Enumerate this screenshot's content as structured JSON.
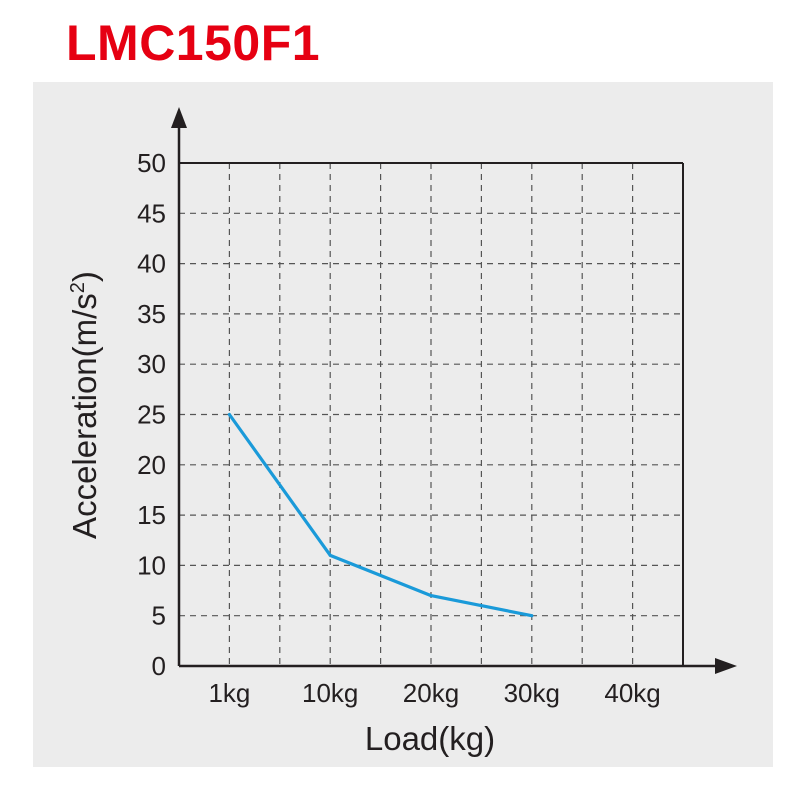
{
  "title": "LMC150F1",
  "chart_data": {
    "type": "line",
    "title": "LMC150F1",
    "xlabel": "Load(kg)",
    "ylabel_main": "Acceleration(m/s",
    "ylabel_sup": "2",
    "ylabel_close": ")",
    "categories": [
      "1kg",
      "10kg",
      "20kg",
      "30kg",
      "40kg"
    ],
    "ylim": [
      0,
      50
    ],
    "yticks": [
      0,
      5,
      10,
      15,
      20,
      25,
      30,
      35,
      40,
      45,
      50
    ],
    "grid": true,
    "series": [
      {
        "name": "LMC150F1",
        "color": "#1a9ad9",
        "points": [
          {
            "x": "1kg",
            "y": 25
          },
          {
            "x": "10kg",
            "y": 11
          },
          {
            "x": "20kg",
            "y": 7
          },
          {
            "x": "30kg",
            "y": 5
          }
        ]
      }
    ]
  }
}
